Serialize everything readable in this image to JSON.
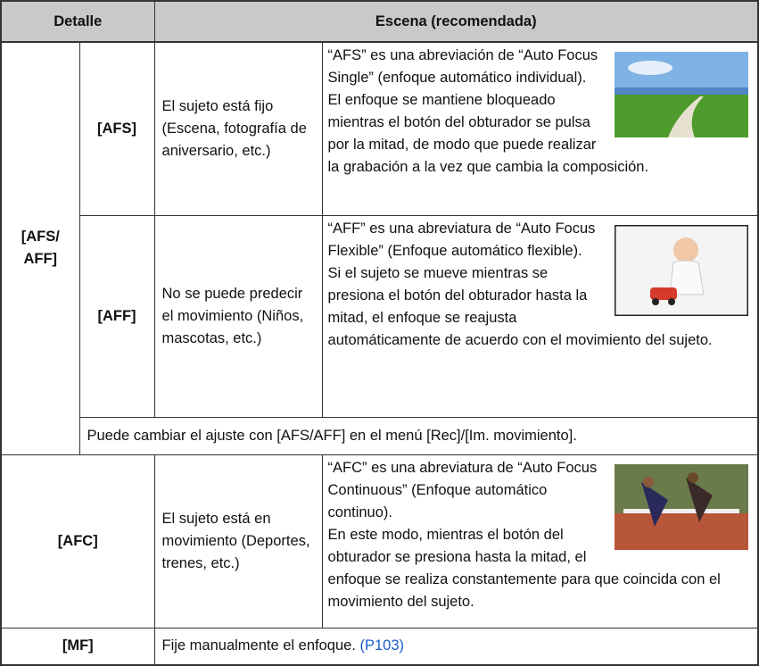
{
  "table": {
    "header": {
      "detail": "Detalle",
      "scene": "Escena (recomendada)"
    },
    "group": "[AFS/ AFF]",
    "rows": [
      {
        "mode": "[AFS]",
        "scene": "El sujeto está fijo (Escena, fotografía de aniversario, etc.)",
        "description": [
          "“AFS” es una abreviación de “Auto Focus Single” (enfoque automático individual).",
          "El enfoque se mantiene bloqueado mientras el botón del obturador se pulsa por la mitad, de modo que puede realizar la grabación a la vez que cambia la composición."
        ]
      },
      {
        "mode": "[AFF]",
        "scene": "No se puede predecir el movimiento (Niños, mascotas, etc.)",
        "description": [
          "“AFF” es una abreviatura de “Auto Focus Flexible” (Enfoque automático flexible).",
          "Si el sujeto se mueve mientras se presiona el botón del obturador hasta la mitad, el enfoque se reajusta automáticamente de acuerdo con el movimiento del sujeto."
        ]
      }
    ],
    "note": "Puede cambiar el ajuste con [AFS/AFF] en el menú [Rec]/[Im. movimiento].",
    "afc": {
      "mode": "[AFC]",
      "scene": "El sujeto está en movimiento (Deportes, trenes, etc.)",
      "description": [
        "“AFC” es una abreviatura de “Auto Focus Continuous” (Enfoque automático continuo).",
        "En este modo, mientras el botón del obturador se presiona hasta la mitad, el enfoque se realiza constantemente para que coincida con el movimiento del sujeto."
      ]
    },
    "mf": {
      "mode": "[MF]",
      "text": "Fije manualmente el enfoque.",
      "link": "(P103)"
    }
  }
}
